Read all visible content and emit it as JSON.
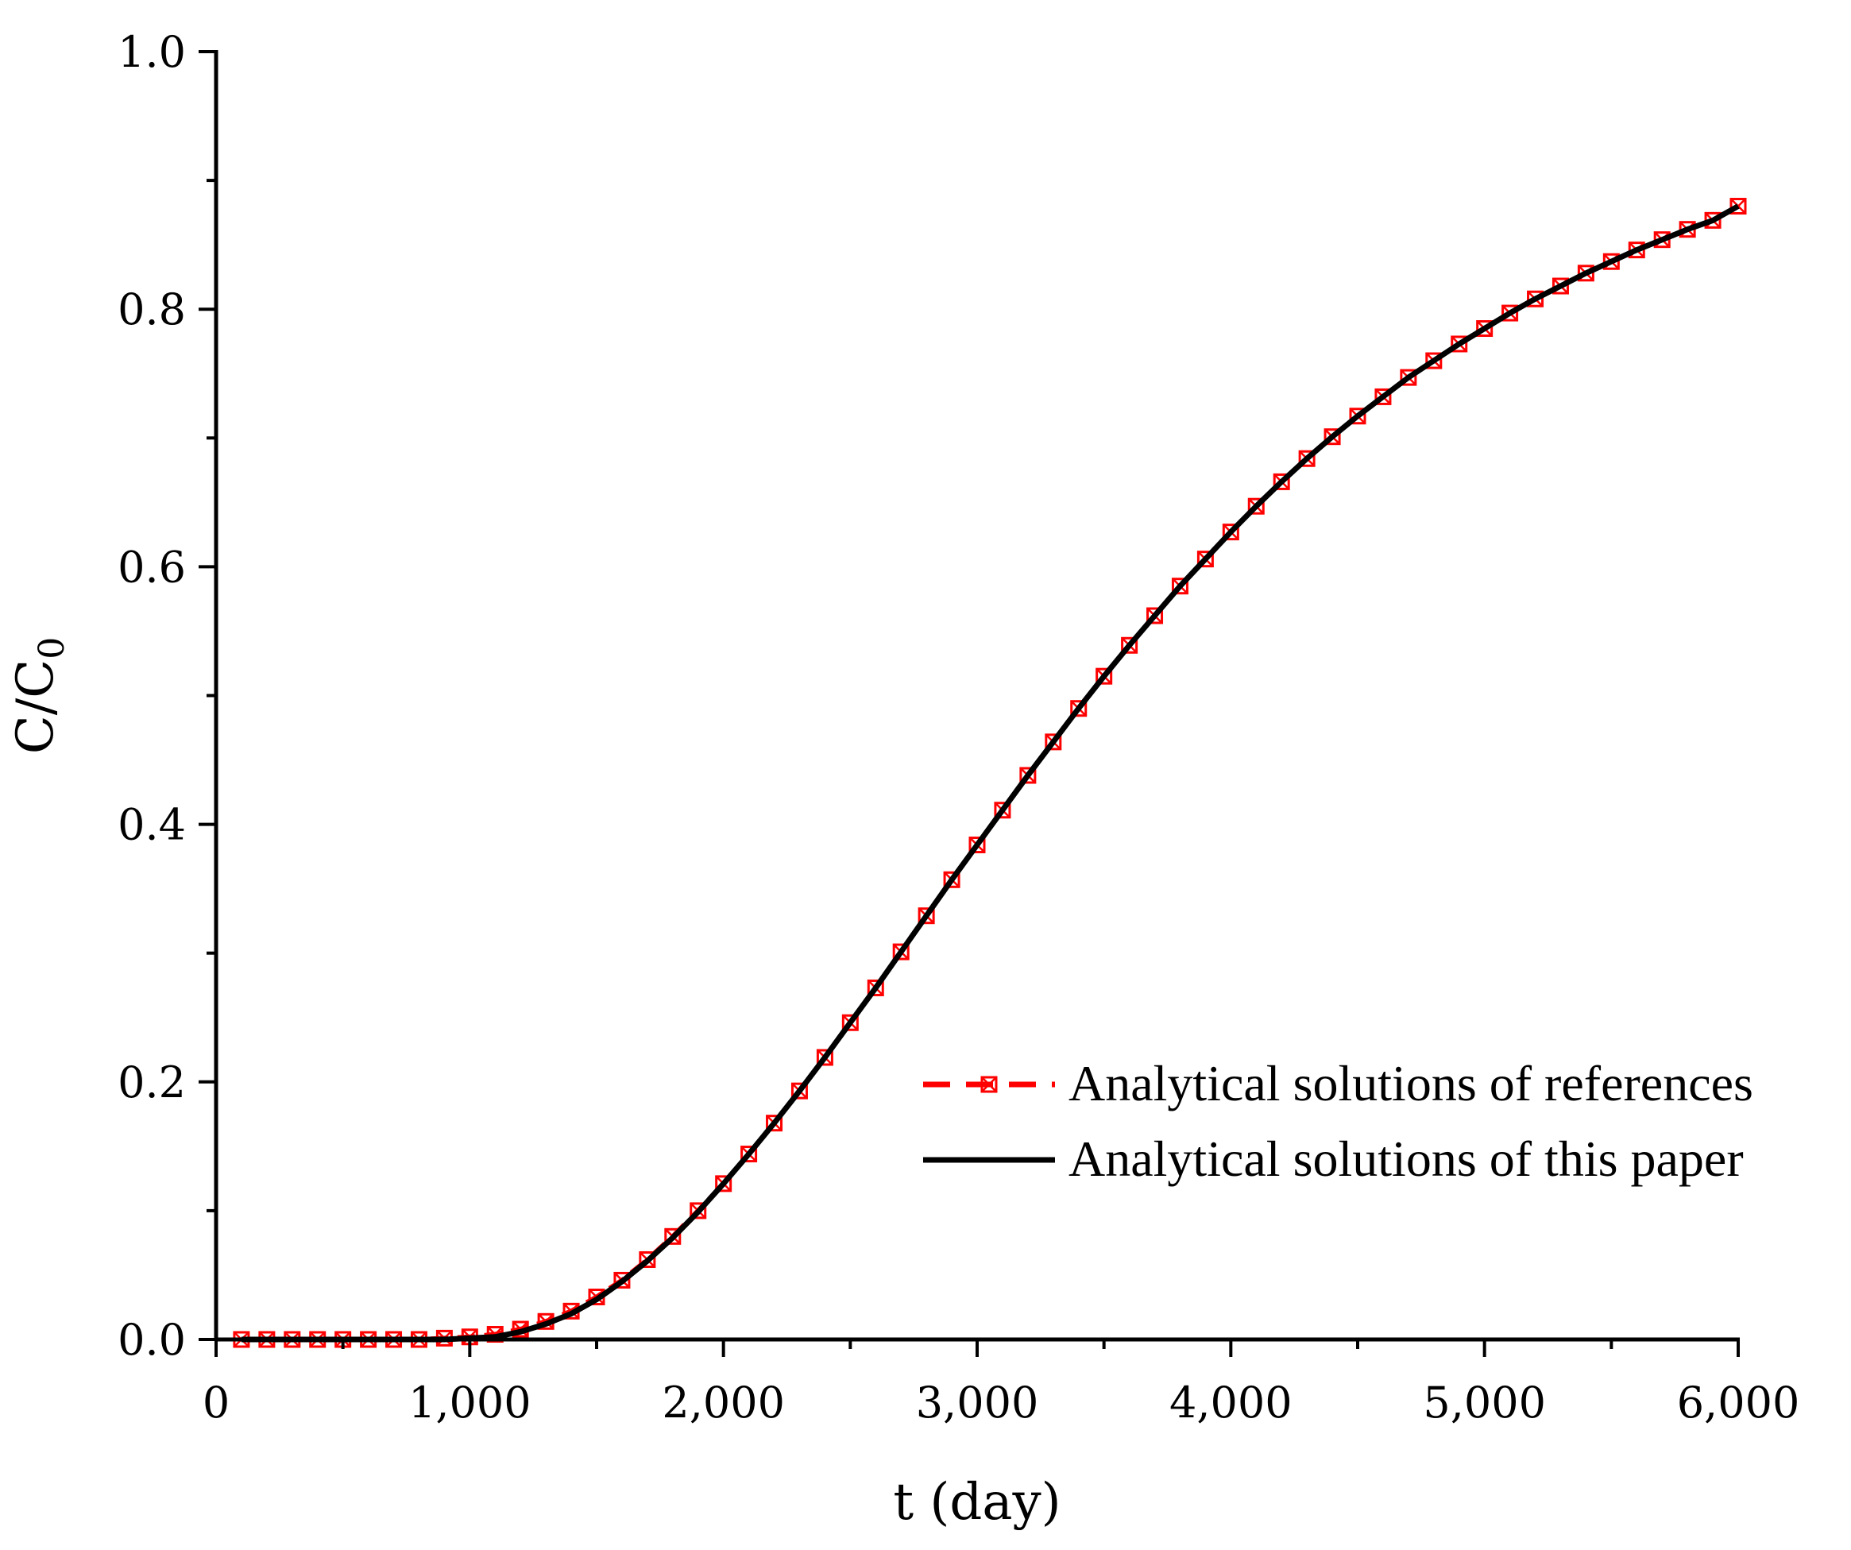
{
  "chart_data": {
    "type": "line",
    "title": "",
    "xlabel": "t (day)",
    "ylabel": {
      "main": "C/C",
      "subscript": "0"
    },
    "xlim": [
      0,
      6000
    ],
    "ylim": [
      0,
      1.0
    ],
    "x_ticks": [
      0,
      1000,
      2000,
      3000,
      4000,
      5000,
      6000
    ],
    "x_tick_labels": [
      "0",
      "1,000",
      "2,000",
      "3,000",
      "4,000",
      "5,000",
      "6,000"
    ],
    "y_ticks": [
      0,
      0.2,
      0.4,
      0.6,
      0.8,
      1.0
    ],
    "y_tick_labels": [
      "0.0",
      "0.2",
      "0.4",
      "0.6",
      "0.8",
      "1.0"
    ],
    "x_minor_step": 500,
    "y_minor_step": 0.1,
    "grid": false,
    "legend_position": "lower-right",
    "series": [
      {
        "name": "Analytical solutions of references",
        "style": "dashed-line-with-crossed-square-markers",
        "color": "#ff0000",
        "x": [
          100,
          200,
          300,
          400,
          500,
          600,
          700,
          800,
          900,
          1000,
          1100,
          1200,
          1300,
          1400,
          1500,
          1600,
          1700,
          1800,
          1900,
          2000,
          2100,
          2200,
          2300,
          2400,
          2500,
          2600,
          2700,
          2800,
          2900,
          3000,
          3100,
          3200,
          3300,
          3400,
          3500,
          3600,
          3700,
          3800,
          3900,
          4000,
          4100,
          4200,
          4300,
          4400,
          4500,
          4600,
          4700,
          4800,
          4900,
          5000,
          5100,
          5200,
          5300,
          5400,
          5500,
          5600,
          5700,
          5800,
          5900,
          6000
        ],
        "y": [
          0.0,
          0.0,
          0.0,
          0.0,
          0.0,
          0.0,
          0.0,
          0.0,
          0.001,
          0.002,
          0.004,
          0.008,
          0.014,
          0.022,
          0.033,
          0.046,
          0.062,
          0.08,
          0.1,
          0.121,
          0.144,
          0.168,
          0.193,
          0.219,
          0.246,
          0.273,
          0.301,
          0.329,
          0.357,
          0.384,
          0.411,
          0.438,
          0.464,
          0.49,
          0.515,
          0.539,
          0.562,
          0.585,
          0.606,
          0.627,
          0.647,
          0.666,
          0.684,
          0.701,
          0.717,
          0.732,
          0.747,
          0.76,
          0.773,
          0.785,
          0.797,
          0.808,
          0.818,
          0.828,
          0.837,
          0.846,
          0.854,
          0.862,
          0.869,
          0.88
        ]
      },
      {
        "name": "Analytical solutions of this paper",
        "style": "solid-line",
        "color": "#000000",
        "x": [
          100,
          200,
          300,
          400,
          500,
          600,
          700,
          800,
          900,
          1000,
          1100,
          1200,
          1300,
          1400,
          1500,
          1600,
          1700,
          1800,
          1900,
          2000,
          2100,
          2200,
          2300,
          2400,
          2500,
          2600,
          2700,
          2800,
          2900,
          3000,
          3100,
          3200,
          3300,
          3400,
          3500,
          3600,
          3700,
          3800,
          3900,
          4000,
          4100,
          4200,
          4300,
          4400,
          4500,
          4600,
          4700,
          4800,
          4900,
          5000,
          5100,
          5200,
          5300,
          5400,
          5500,
          5600,
          5700,
          5800,
          5900,
          6000
        ],
        "y": [
          0.0,
          0.0,
          0.0,
          0.0,
          0.0,
          0.0,
          0.0,
          0.0,
          0.0,
          0.001,
          0.002,
          0.006,
          0.012,
          0.02,
          0.031,
          0.045,
          0.061,
          0.079,
          0.099,
          0.121,
          0.144,
          0.168,
          0.193,
          0.219,
          0.246,
          0.273,
          0.301,
          0.329,
          0.357,
          0.384,
          0.411,
          0.438,
          0.464,
          0.49,
          0.515,
          0.539,
          0.562,
          0.585,
          0.606,
          0.627,
          0.647,
          0.666,
          0.684,
          0.701,
          0.717,
          0.732,
          0.747,
          0.76,
          0.773,
          0.785,
          0.797,
          0.808,
          0.818,
          0.828,
          0.837,
          0.846,
          0.854,
          0.862,
          0.869,
          0.88
        ]
      }
    ]
  }
}
